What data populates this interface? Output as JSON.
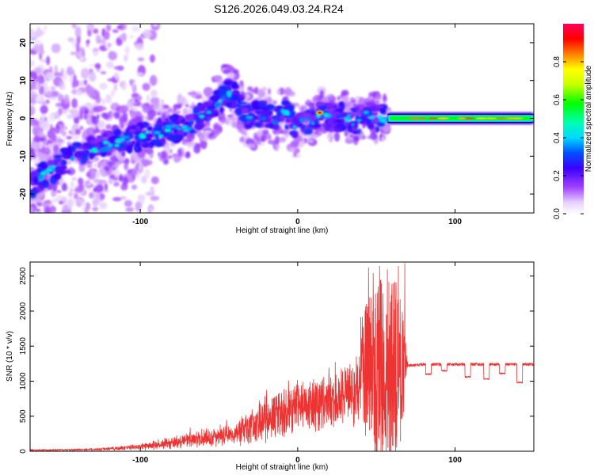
{
  "figure_title": "S126.2026.049.03.24.R24",
  "colors": {
    "snr_line": "#ee3333",
    "spectrum_dark": "#5a00c8",
    "frame": "#000000"
  },
  "chart_data": [
    {
      "type": "heatmap",
      "name": "spectrogram",
      "xlabel": "Height of straight line (km)",
      "ylabel": "Frequency (Hz)",
      "xlim": [
        -170,
        150
      ],
      "ylim": [
        -25,
        25
      ],
      "x_ticks": [
        -100,
        0,
        100
      ],
      "x_tick_labels": [
        "-100",
        "0",
        "100"
      ],
      "y_ticks": [
        -20,
        -10,
        0,
        10,
        20
      ],
      "y_tick_labels": [
        "-20",
        "-10",
        "0",
        "10",
        "20"
      ],
      "ridge_x": [
        -170,
        -160,
        -150,
        -140,
        -130,
        -120,
        -110,
        -100,
        -90,
        -80,
        -70,
        -60,
        -55,
        -50,
        -45,
        -40,
        -35,
        -30,
        -25,
        -20,
        -15,
        -10,
        -5,
        0,
        5,
        10,
        15,
        20,
        25,
        30,
        35,
        40,
        45,
        50,
        55,
        60,
        80,
        100,
        120,
        150
      ],
      "ridge_y": [
        -18,
        -15,
        -12,
        -9,
        -8,
        -7,
        -6,
        -5,
        -4,
        -3,
        -2,
        1,
        2,
        4,
        7,
        6,
        2,
        0,
        1,
        1,
        -1,
        2,
        0,
        -3,
        0,
        -1,
        2,
        0,
        0,
        1,
        -1,
        0,
        1,
        0,
        0,
        0,
        0,
        0,
        0,
        0
      ],
      "colorbar": {
        "label": "Normalized spectral amplitude",
        "range": [
          0,
          1
        ],
        "ticks": [
          0.0,
          0.2,
          0.4,
          0.6,
          0.8
        ],
        "tick_labels": [
          "0.0",
          "0.2",
          "0.4",
          "0.6",
          "0.8"
        ]
      }
    },
    {
      "type": "line",
      "name": "snr",
      "xlabel": "Height of straight line (km)",
      "ylabel": "SNR (10 * v/v)",
      "xlim": [
        -170,
        150
      ],
      "ylim": [
        0,
        2700
      ],
      "x_ticks": [
        -100,
        0,
        100
      ],
      "x_tick_labels": [
        "-100",
        "0",
        "100"
      ],
      "y_ticks": [
        0,
        500,
        1000,
        1500,
        2000,
        2500
      ],
      "y_tick_labels": [
        "0",
        "500",
        "1000",
        "1500",
        "2000",
        "2500"
      ],
      "envelope_x": [
        -170,
        -150,
        -130,
        -110,
        -100,
        -90,
        -80,
        -70,
        -60,
        -50,
        -40,
        -30,
        -20,
        -10,
        0,
        10,
        20,
        30,
        35,
        40,
        50,
        60,
        65,
        70,
        80,
        90,
        100,
        110,
        120,
        130,
        140,
        150
      ],
      "envelope_y": [
        20,
        25,
        30,
        60,
        80,
        110,
        150,
        190,
        220,
        260,
        320,
        450,
        580,
        700,
        780,
        880,
        960,
        1020,
        1060,
        1100,
        1120,
        1130,
        1140,
        1220,
        1240,
        1240,
        1240,
        1240,
        1240,
        1240,
        1240,
        1240
      ],
      "spread_y": [
        30,
        20,
        30,
        60,
        90,
        120,
        160,
        200,
        220,
        240,
        300,
        420,
        550,
        500,
        450,
        400,
        380,
        400,
        600,
        900,
        1300,
        1400,
        1300,
        0,
        0,
        0,
        0,
        0,
        0,
        0,
        0,
        0
      ],
      "dips_x": [
        83,
        93,
        108,
        120,
        130,
        141
      ],
      "dips_y": [
        1100,
        1150,
        1060,
        1030,
        1110,
        980
      ],
      "peaks_x": [
        45,
        48,
        52,
        57,
        64,
        68
      ],
      "peaks_y": [
        2620,
        2540,
        2640,
        2590,
        2640,
        2680
      ]
    }
  ]
}
